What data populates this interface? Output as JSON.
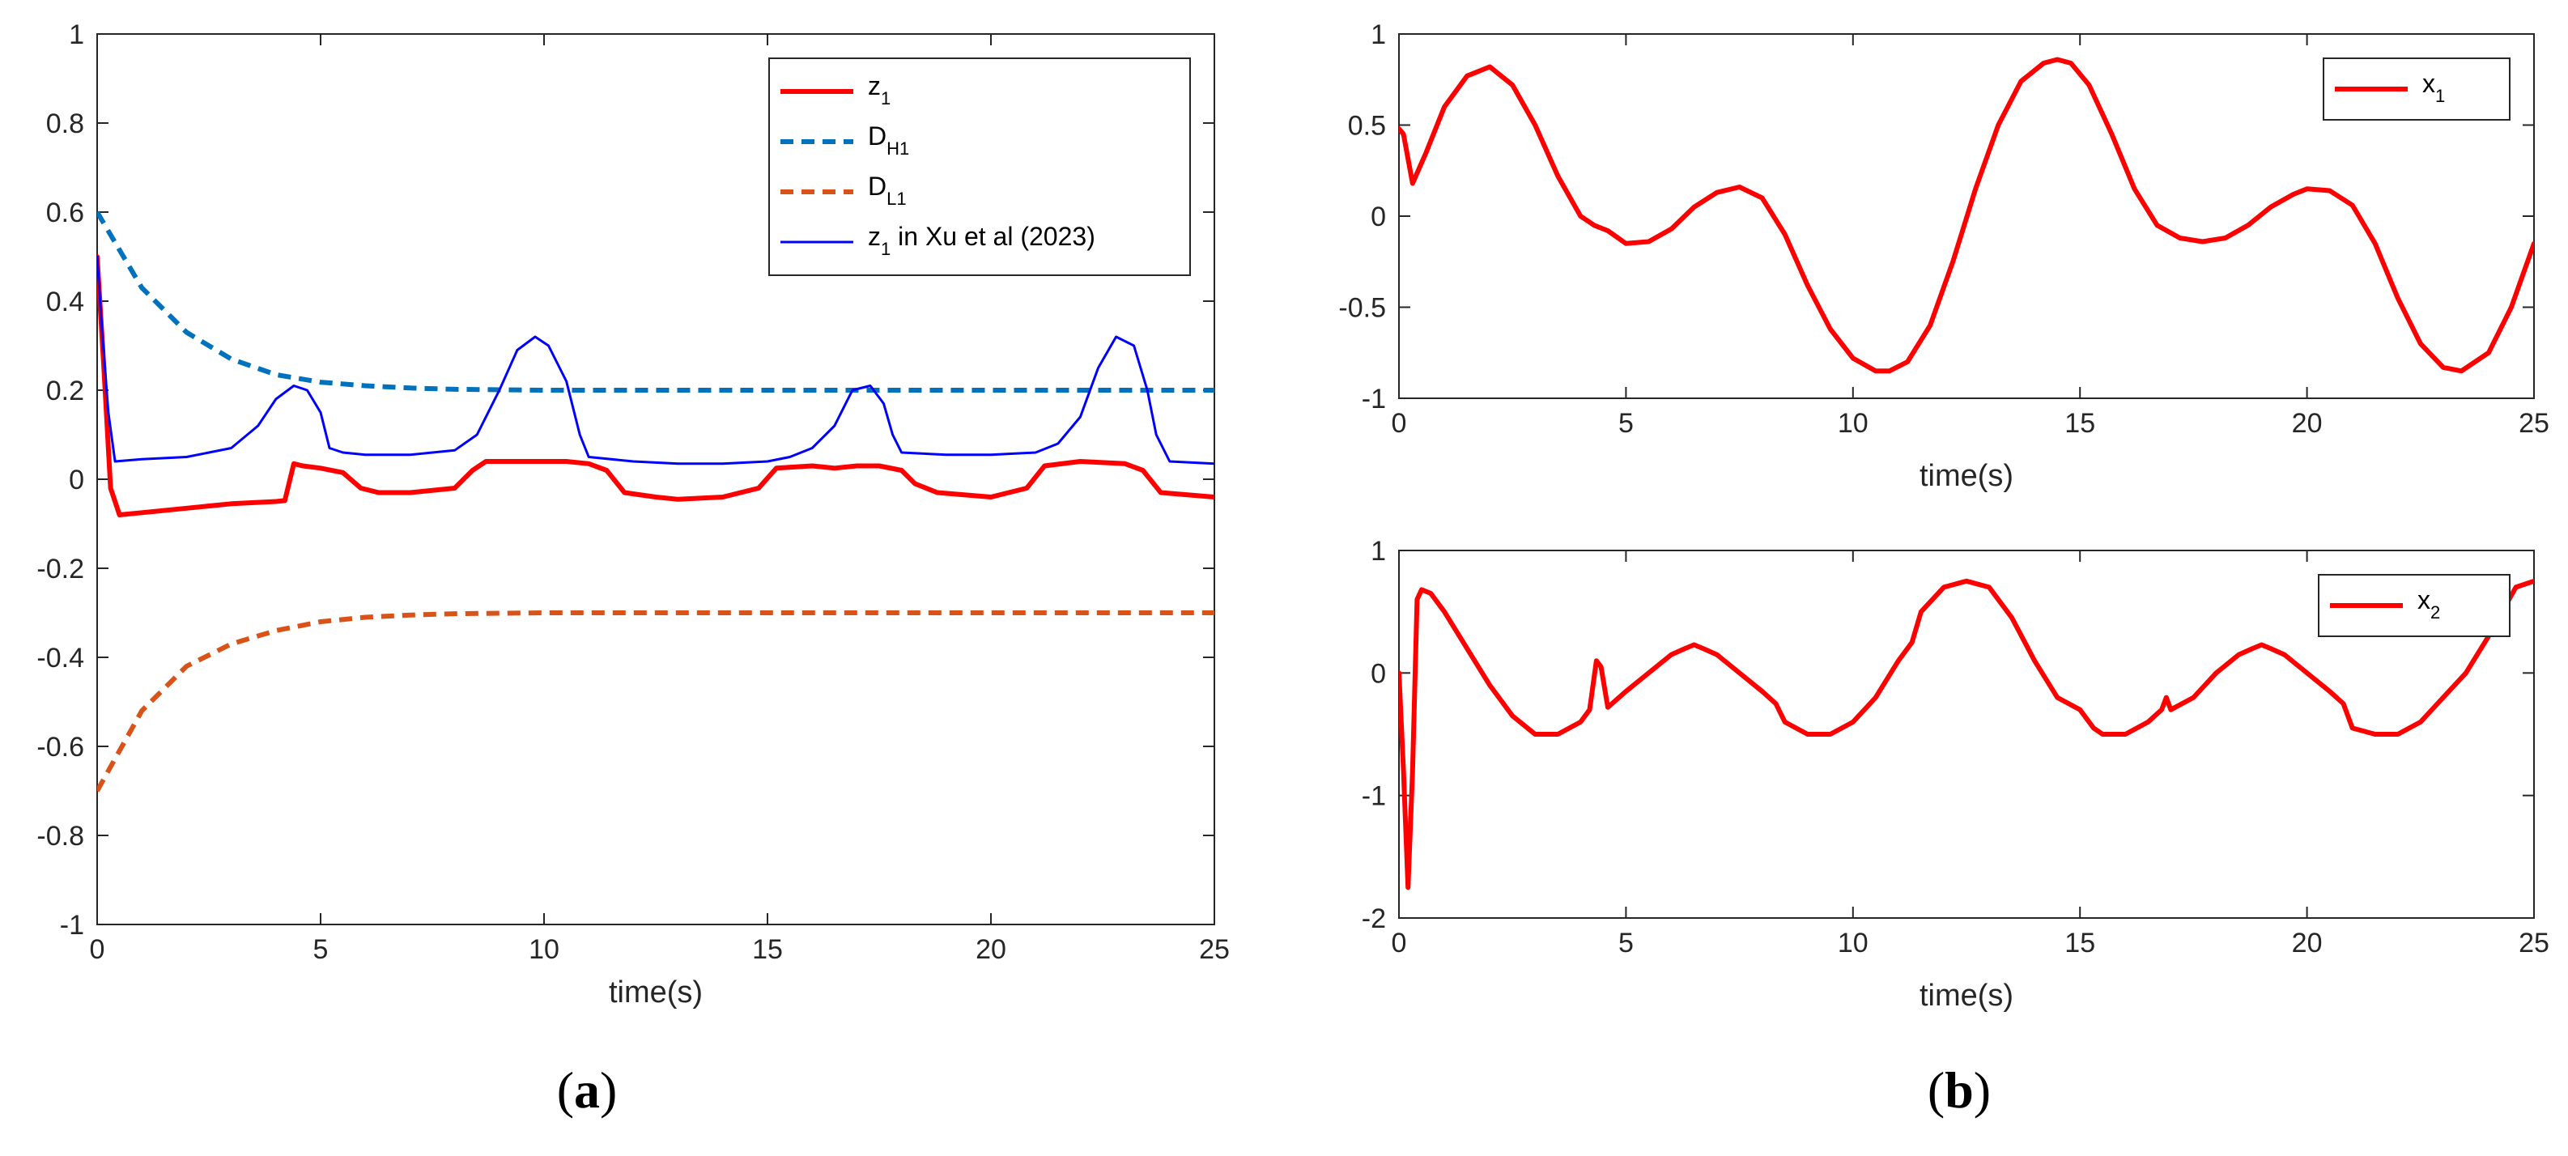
{
  "chart_data": [
    {
      "id": "a",
      "type": "line",
      "caption": "a",
      "xlabel": "time(s)",
      "ylabel": "",
      "xlim": [
        0,
        25
      ],
      "ylim": [
        -1,
        1
      ],
      "xticks": [
        0,
        5,
        10,
        15,
        20,
        25
      ],
      "yticks": [
        -1,
        -0.8,
        -0.6,
        -0.4,
        -0.2,
        0,
        0.2,
        0.4,
        0.6,
        0.8,
        1
      ],
      "ytick_labels": [
        "-1",
        "-0.8",
        "-0.6",
        "-0.4",
        "-0.2",
        "0",
        "0.2",
        "0.4",
        "0.6",
        "0.8",
        "1"
      ],
      "legend_position": "top-right",
      "series": [
        {
          "name": "z",
          "name_sub": "1",
          "name_suffix": "",
          "color": "#ff0000",
          "style": "solid",
          "width": "thick",
          "x": [
            0,
            0.15,
            0.3,
            0.5,
            1,
            2,
            3,
            4,
            4.2,
            4.4,
            4.6,
            5,
            5.5,
            5.9,
            6.3,
            7,
            8,
            8.4,
            8.7,
            9.5,
            10.5,
            11,
            11.4,
            11.8,
            12.5,
            13,
            14,
            14.8,
            15.2,
            16,
            16.5,
            17,
            17.5,
            18,
            18.3,
            18.8,
            20,
            20.8,
            21.2,
            22,
            23,
            23.4,
            23.8,
            25
          ],
          "y": [
            0.5,
            0.25,
            -0.02,
            -0.08,
            -0.075,
            -0.065,
            -0.055,
            -0.05,
            -0.048,
            0.035,
            0.03,
            0.025,
            0.015,
            -0.02,
            -0.03,
            -0.03,
            -0.02,
            0.02,
            0.04,
            0.04,
            0.04,
            0.035,
            0.02,
            -0.03,
            -0.04,
            -0.045,
            -0.04,
            -0.02,
            0.025,
            0.03,
            0.025,
            0.03,
            0.03,
            0.02,
            -0.01,
            -0.03,
            -0.04,
            -0.02,
            0.03,
            0.04,
            0.035,
            0.02,
            -0.03,
            -0.04
          ]
        },
        {
          "name": "D",
          "name_sub": "H1",
          "name_suffix": "",
          "color": "#0072bd",
          "style": "dashed",
          "width": "thick",
          "x": [
            0,
            1,
            2,
            3,
            4,
            5,
            6,
            7,
            8,
            10,
            12,
            15,
            20,
            25
          ],
          "y": [
            0.6,
            0.43,
            0.33,
            0.27,
            0.235,
            0.218,
            0.21,
            0.205,
            0.202,
            0.2,
            0.2,
            0.2,
            0.2,
            0.2
          ]
        },
        {
          "name": "D",
          "name_sub": "L1",
          "name_suffix": "",
          "color": "#d95319",
          "style": "dashed",
          "width": "thick",
          "x": [
            0,
            1,
            2,
            3,
            4,
            5,
            6,
            7,
            8,
            10,
            12,
            15,
            20,
            25
          ],
          "y": [
            -0.7,
            -0.52,
            -0.42,
            -0.37,
            -0.34,
            -0.32,
            -0.31,
            -0.305,
            -0.302,
            -0.3,
            -0.3,
            -0.3,
            -0.3,
            -0.3
          ]
        },
        {
          "name": "z",
          "name_sub": "1",
          "name_suffix": " in Xu et al (2023)",
          "color": "#0000ff",
          "style": "solid",
          "width": "thin",
          "x": [
            0,
            0.1,
            0.25,
            0.4,
            1,
            2,
            3,
            3.6,
            4,
            4.4,
            4.7,
            5,
            5.2,
            5.5,
            6,
            7,
            8,
            8.5,
            9,
            9.4,
            9.8,
            10.1,
            10.5,
            10.8,
            11,
            12,
            13,
            14,
            15,
            15.5,
            16,
            16.5,
            16.9,
            17.3,
            17.6,
            17.8,
            18,
            19,
            20,
            21,
            21.5,
            22,
            22.4,
            22.8,
            23.2,
            23.5,
            23.7,
            24,
            25
          ],
          "y": [
            0.5,
            0.35,
            0.15,
            0.04,
            0.045,
            0.05,
            0.07,
            0.12,
            0.18,
            0.21,
            0.2,
            0.15,
            0.07,
            0.06,
            0.055,
            0.055,
            0.065,
            0.1,
            0.2,
            0.29,
            0.32,
            0.3,
            0.22,
            0.1,
            0.05,
            0.04,
            0.035,
            0.035,
            0.04,
            0.05,
            0.07,
            0.12,
            0.2,
            0.21,
            0.17,
            0.1,
            0.06,
            0.055,
            0.055,
            0.06,
            0.08,
            0.14,
            0.25,
            0.32,
            0.3,
            0.2,
            0.1,
            0.04,
            0.035
          ]
        }
      ]
    },
    {
      "id": "b1",
      "type": "line",
      "caption": "b",
      "xlabel": "time(s)",
      "ylabel": "",
      "xlim": [
        0,
        25
      ],
      "ylim": [
        -1,
        1
      ],
      "xticks": [
        0,
        5,
        10,
        15,
        20,
        25
      ],
      "yticks": [
        -1,
        -0.5,
        0,
        0.5,
        1
      ],
      "ytick_labels": [
        "-1",
        "-0.5",
        "0",
        "0.5",
        "1"
      ],
      "legend_position": "top-right",
      "series": [
        {
          "name": "x",
          "name_sub": "1",
          "name_suffix": "",
          "color": "#ff0000",
          "style": "solid",
          "width": "thick",
          "x": [
            0,
            0.1,
            0.3,
            0.6,
            1,
            1.5,
            2,
            2.5,
            3,
            3.5,
            4,
            4.3,
            4.6,
            5,
            5.5,
            6,
            6.5,
            7,
            7.5,
            8,
            8.5,
            9,
            9.5,
            10,
            10.5,
            10.8,
            11.2,
            11.7,
            12.2,
            12.7,
            13.2,
            13.7,
            14.2,
            14.5,
            14.8,
            15.2,
            15.7,
            16.2,
            16.7,
            17.2,
            17.7,
            18.2,
            18.7,
            19.2,
            19.7,
            20,
            20.5,
            21,
            21.5,
            22,
            22.5,
            23,
            23.4,
            24,
            24.5,
            25
          ],
          "y": [
            0.48,
            0.45,
            0.18,
            0.35,
            0.6,
            0.77,
            0.82,
            0.72,
            0.5,
            0.22,
            0.0,
            -0.05,
            -0.08,
            -0.15,
            -0.14,
            -0.07,
            0.05,
            0.13,
            0.16,
            0.1,
            -0.1,
            -0.38,
            -0.62,
            -0.78,
            -0.85,
            -0.85,
            -0.8,
            -0.6,
            -0.25,
            0.15,
            0.5,
            0.74,
            0.84,
            0.86,
            0.84,
            0.72,
            0.45,
            0.15,
            -0.05,
            -0.12,
            -0.14,
            -0.12,
            -0.05,
            0.05,
            0.12,
            0.15,
            0.14,
            0.06,
            -0.15,
            -0.45,
            -0.7,
            -0.83,
            -0.85,
            -0.75,
            -0.5,
            -0.15
          ]
        }
      ]
    },
    {
      "id": "b2",
      "type": "line",
      "caption": "b",
      "xlabel": "time(s)",
      "ylabel": "",
      "xlim": [
        0,
        25
      ],
      "ylim": [
        -2,
        1
      ],
      "xticks": [
        0,
        5,
        10,
        15,
        20,
        25
      ],
      "yticks": [
        -2,
        -1,
        0,
        1
      ],
      "ytick_labels": [
        "-2",
        "-1",
        "0",
        "1"
      ],
      "legend_position": "top-right",
      "series": [
        {
          "name": "x",
          "name_sub": "2",
          "name_suffix": "",
          "color": "#ff0000",
          "style": "solid",
          "width": "thick",
          "x": [
            0,
            0.1,
            0.2,
            0.3,
            0.4,
            0.5,
            0.7,
            1,
            1.5,
            2,
            2.5,
            3,
            3.5,
            4,
            4.2,
            4.35,
            4.45,
            4.6,
            5,
            5.5,
            6,
            6.3,
            6.5,
            6.7,
            7,
            7.5,
            8,
            8.3,
            8.5,
            9,
            9.5,
            10,
            10.5,
            11,
            11.3,
            11.5,
            12,
            12.5,
            13,
            13.5,
            14,
            14.5,
            15,
            15.3,
            15.5,
            16,
            16.5,
            16.8,
            16.9,
            17,
            17.5,
            18,
            18.5,
            18.8,
            19,
            19.2,
            19.5,
            20,
            20.5,
            20.8,
            21,
            21.5,
            22,
            22.5,
            23,
            23.5,
            24,
            24.3,
            24.6,
            25
          ],
          "y": [
            0,
            -0.8,
            -1.75,
            -0.8,
            0.6,
            0.68,
            0.65,
            0.5,
            0.2,
            -0.1,
            -0.35,
            -0.5,
            -0.5,
            -0.4,
            -0.3,
            0.1,
            0.05,
            -0.28,
            -0.15,
            0.0,
            0.15,
            0.2,
            0.23,
            0.2,
            0.15,
            0.0,
            -0.15,
            -0.25,
            -0.4,
            -0.5,
            -0.5,
            -0.4,
            -0.2,
            0.1,
            0.25,
            0.5,
            0.7,
            0.75,
            0.7,
            0.45,
            0.1,
            -0.2,
            -0.3,
            -0.45,
            -0.5,
            -0.5,
            -0.4,
            -0.3,
            -0.2,
            -0.3,
            -0.2,
            0.0,
            0.15,
            0.2,
            0.23,
            0.2,
            0.15,
            0.0,
            -0.15,
            -0.25,
            -0.45,
            -0.5,
            -0.5,
            -0.4,
            -0.2,
            0.0,
            0.3,
            0.5,
            0.7,
            0.75
          ]
        }
      ]
    }
  ]
}
